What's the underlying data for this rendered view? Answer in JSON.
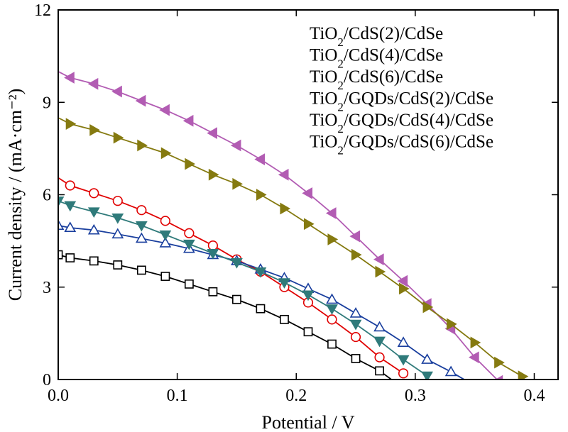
{
  "chart_data": {
    "type": "line",
    "xlabel": "Potential / V",
    "ylabel": "Current density / (mA·cm⁻²)",
    "xlim": [
      0,
      0.42
    ],
    "ylim": [
      0,
      12
    ],
    "xticks": [
      0.0,
      0.1,
      0.2,
      0.3,
      0.4
    ],
    "xtick_labels": [
      "0.0",
      "0.1",
      "0.2",
      "0.3",
      "0.4"
    ],
    "yticks": [
      0,
      3,
      6,
      9,
      12
    ],
    "ytick_labels": [
      "0",
      "3",
      "6",
      "9",
      "12"
    ],
    "grid": false,
    "legend_position": "top-right",
    "series": [
      {
        "name": "TiO₂/CdS(2)/CdSe",
        "color": "#000000",
        "marker": "square",
        "x": [
          0,
          0.01,
          0.03,
          0.05,
          0.07,
          0.09,
          0.11,
          0.13,
          0.15,
          0.17,
          0.19,
          0.21,
          0.23,
          0.25,
          0.27,
          0.28
        ],
        "y": [
          4.05,
          3.95,
          3.85,
          3.72,
          3.55,
          3.35,
          3.1,
          2.85,
          2.6,
          2.3,
          1.95,
          1.55,
          1.15,
          0.68,
          0.28,
          0
        ],
        "marker_x": [
          0,
          0.01,
          0.03,
          0.05,
          0.07,
          0.09,
          0.11,
          0.13,
          0.15,
          0.17,
          0.19,
          0.21,
          0.23,
          0.25,
          0.27
        ],
        "marker_y": [
          4.05,
          3.95,
          3.85,
          3.72,
          3.55,
          3.35,
          3.1,
          2.85,
          2.6,
          2.3,
          1.95,
          1.55,
          1.15,
          0.68,
          0.28
        ]
      },
      {
        "name": "TiO₂/CdS(4)/CdSe",
        "color": "#e00000",
        "marker": "circle",
        "x": [
          0,
          0.01,
          0.03,
          0.05,
          0.07,
          0.09,
          0.11,
          0.13,
          0.15,
          0.17,
          0.19,
          0.21,
          0.23,
          0.25,
          0.27,
          0.29
        ],
        "y": [
          6.55,
          6.3,
          6.05,
          5.8,
          5.5,
          5.15,
          4.75,
          4.35,
          3.9,
          3.5,
          3.0,
          2.5,
          1.95,
          1.38,
          0.72,
          0.2
        ],
        "marker_x": [
          0.01,
          0.03,
          0.05,
          0.07,
          0.09,
          0.11,
          0.13,
          0.15,
          0.17,
          0.19,
          0.21,
          0.23,
          0.25,
          0.27,
          0.29
        ],
        "marker_y": [
          6.3,
          6.05,
          5.8,
          5.5,
          5.15,
          4.75,
          4.35,
          3.9,
          3.5,
          3.0,
          2.5,
          1.95,
          1.38,
          0.72,
          0.2
        ]
      },
      {
        "name": "TiO₂/CdS(6)/CdSe",
        "color": "#1a3f9e",
        "marker": "triangle-up",
        "x": [
          0,
          0.01,
          0.03,
          0.05,
          0.07,
          0.09,
          0.11,
          0.13,
          0.15,
          0.17,
          0.19,
          0.21,
          0.23,
          0.25,
          0.27,
          0.29,
          0.31,
          0.33,
          0.35
        ],
        "y": [
          5.0,
          4.93,
          4.85,
          4.72,
          4.58,
          4.43,
          4.25,
          4.05,
          3.85,
          3.58,
          3.3,
          2.95,
          2.6,
          2.15,
          1.7,
          1.2,
          0.65,
          0.25,
          -0.2
        ],
        "marker_x": [
          0,
          0.01,
          0.03,
          0.05,
          0.07,
          0.09,
          0.11,
          0.13,
          0.15,
          0.17,
          0.19,
          0.21,
          0.23,
          0.25,
          0.27,
          0.29,
          0.31,
          0.33
        ],
        "marker_y": [
          5.0,
          4.93,
          4.85,
          4.72,
          4.58,
          4.43,
          4.25,
          4.05,
          3.85,
          3.58,
          3.3,
          2.95,
          2.6,
          2.15,
          1.7,
          1.2,
          0.65,
          0.25
        ]
      },
      {
        "name": "TiO₂/GQDs/CdS(2)/CdSe",
        "color": "#2f7a7a",
        "marker": "triangle-down",
        "x": [
          0,
          0.01,
          0.03,
          0.05,
          0.07,
          0.09,
          0.11,
          0.13,
          0.15,
          0.17,
          0.19,
          0.21,
          0.23,
          0.25,
          0.27,
          0.29,
          0.31
        ],
        "y": [
          5.8,
          5.65,
          5.45,
          5.25,
          5.0,
          4.7,
          4.4,
          4.1,
          3.8,
          3.5,
          3.15,
          2.75,
          2.3,
          1.8,
          1.25,
          0.65,
          0.12
        ],
        "marker_x": [
          0,
          0.01,
          0.03,
          0.05,
          0.07,
          0.09,
          0.11,
          0.13,
          0.15,
          0.17,
          0.19,
          0.21,
          0.23,
          0.25,
          0.27,
          0.29,
          0.31
        ],
        "marker_y": [
          5.8,
          5.65,
          5.45,
          5.25,
          5.0,
          4.7,
          4.4,
          4.1,
          3.8,
          3.5,
          3.15,
          2.75,
          2.3,
          1.8,
          1.25,
          0.65,
          0.12
        ]
      },
      {
        "name": "TiO₂/GQDs/CdS(4)/CdSe",
        "color": "#b25cb3",
        "marker": "triangle-left",
        "x": [
          0,
          0.01,
          0.03,
          0.05,
          0.07,
          0.09,
          0.11,
          0.13,
          0.15,
          0.17,
          0.19,
          0.21,
          0.23,
          0.25,
          0.27,
          0.29,
          0.31,
          0.33,
          0.35,
          0.37
        ],
        "y": [
          10.0,
          9.8,
          9.6,
          9.35,
          9.05,
          8.75,
          8.4,
          8.0,
          7.6,
          7.15,
          6.65,
          6.05,
          5.4,
          4.65,
          3.9,
          3.2,
          2.45,
          1.65,
          0.72,
          -0.05
        ],
        "marker_x": [
          0.01,
          0.03,
          0.05,
          0.07,
          0.09,
          0.11,
          0.13,
          0.15,
          0.17,
          0.19,
          0.21,
          0.23,
          0.25,
          0.27,
          0.29,
          0.31,
          0.33,
          0.35,
          0.37
        ],
        "marker_y": [
          9.8,
          9.6,
          9.35,
          9.05,
          8.75,
          8.4,
          8.0,
          7.6,
          7.15,
          6.65,
          6.05,
          5.4,
          4.65,
          3.9,
          3.2,
          2.45,
          1.65,
          0.72,
          -0.05
        ]
      },
      {
        "name": "TiO₂/GQDs/CdS(6)/CdSe",
        "color": "#857a10",
        "marker": "triangle-right",
        "x": [
          0,
          0.01,
          0.03,
          0.05,
          0.07,
          0.09,
          0.11,
          0.13,
          0.15,
          0.17,
          0.19,
          0.21,
          0.23,
          0.25,
          0.27,
          0.29,
          0.31,
          0.33,
          0.35,
          0.37,
          0.39
        ],
        "y": [
          8.5,
          8.3,
          8.1,
          7.85,
          7.6,
          7.35,
          7.0,
          6.65,
          6.35,
          6.0,
          5.55,
          5.05,
          4.55,
          4.05,
          3.5,
          2.95,
          2.35,
          1.8,
          1.2,
          0.55,
          0.1
        ],
        "marker_x": [
          0.01,
          0.03,
          0.05,
          0.07,
          0.09,
          0.11,
          0.13,
          0.15,
          0.17,
          0.19,
          0.21,
          0.23,
          0.25,
          0.27,
          0.29,
          0.31,
          0.33,
          0.35,
          0.37,
          0.39
        ],
        "marker_y": [
          8.3,
          8.1,
          7.85,
          7.6,
          7.35,
          7.0,
          6.65,
          6.35,
          6.0,
          5.55,
          5.05,
          4.55,
          4.05,
          3.5,
          2.95,
          2.35,
          1.8,
          1.2,
          0.55,
          0.1
        ]
      }
    ]
  }
}
